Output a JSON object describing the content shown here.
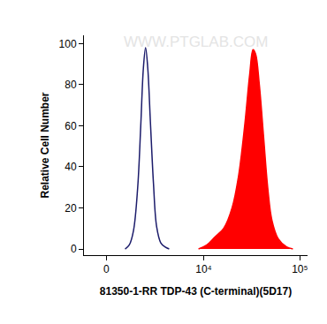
{
  "chart_data": {
    "type": "line",
    "x_label": "81350-1-RR TDP-43 (C-terminal)(5D17)",
    "y_label": "Relative Cell Number",
    "annotations": [
      "WWW.PTGLAB.COM"
    ],
    "xlim": [
      -1100,
      120000
    ],
    "xticks": [
      {
        "value": 0,
        "label": "0"
      },
      {
        "value": 10000,
        "label": "10⁴"
      },
      {
        "value": 100000,
        "label": "10⁵"
      }
    ],
    "ylim": [
      -3,
      104
    ],
    "yticks": [
      0,
      20,
      40,
      60,
      80,
      100
    ],
    "grid": false,
    "series": [
      {
        "type": "line",
        "color": "#1c1c6b",
        "x": [
          919,
          1142,
          1377,
          1625,
          1816,
          1987,
          2137,
          2292,
          2485,
          2725,
          2983,
          3356,
          3763,
          4208
        ],
        "values": [
          0,
          2,
          9,
          30,
          60,
          88,
          98,
          88,
          62,
          32,
          11,
          3,
          1,
          0
        ]
      },
      {
        "type": "area",
        "color": "#ff0000",
        "x": [
          8807,
          10801,
          13229,
          16187,
          19795,
          23020,
          26749,
          30173,
          32683,
          34718,
          37979,
          41990,
          46397,
          51277,
          59596,
          72796,
          84573
        ],
        "values": [
          0,
          2,
          6,
          10,
          20,
          35,
          60,
          85,
          97,
          95,
          80,
          55,
          30,
          14,
          5,
          1,
          0
        ]
      }
    ]
  }
}
